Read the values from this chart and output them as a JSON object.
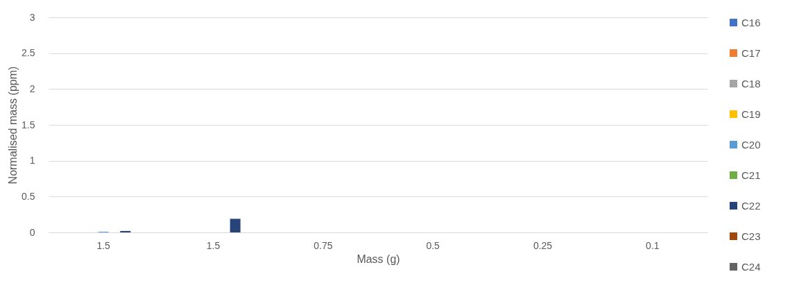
{
  "chart_data": {
    "type": "bar",
    "xlabel": "Mass (g)",
    "ylabel": "Normalised mass (ppm)",
    "categories": [
      "1.5",
      "1.5",
      "0.75",
      "0.5",
      "0.25",
      "0.1"
    ],
    "series": [
      {
        "name": "C16",
        "color": "#4472c4",
        "values": [
          0,
          0,
          0,
          0,
          0,
          0
        ]
      },
      {
        "name": "C17",
        "color": "#ed7d31",
        "values": [
          0,
          0,
          0,
          0,
          0,
          0
        ]
      },
      {
        "name": "C18",
        "color": "#a5a5a5",
        "values": [
          0,
          0,
          0,
          0,
          0,
          0
        ]
      },
      {
        "name": "C19",
        "color": "#ffc000",
        "values": [
          0,
          0,
          0,
          0,
          0,
          0
        ]
      },
      {
        "name": "C20",
        "color": "#5b9bd5",
        "values": [
          0.01,
          0,
          0,
          0,
          0,
          0
        ]
      },
      {
        "name": "C21",
        "color": "#70ad47",
        "values": [
          0,
          0,
          0,
          0,
          0,
          0
        ]
      },
      {
        "name": "C22",
        "color": "#264478",
        "values": [
          0.02,
          0.19,
          0,
          0,
          0,
          0
        ]
      },
      {
        "name": "C23",
        "color": "#9e480e",
        "values": [
          0,
          0,
          0,
          0,
          0,
          0
        ]
      },
      {
        "name": "C24",
        "color": "#636363",
        "values": [
          0,
          0,
          0,
          0,
          0,
          0
        ]
      }
    ],
    "ylim": [
      0,
      3
    ],
    "yticks": [
      0,
      0.5,
      1,
      1.5,
      2,
      2.5,
      3
    ],
    "grid": "y",
    "legend": "right"
  }
}
